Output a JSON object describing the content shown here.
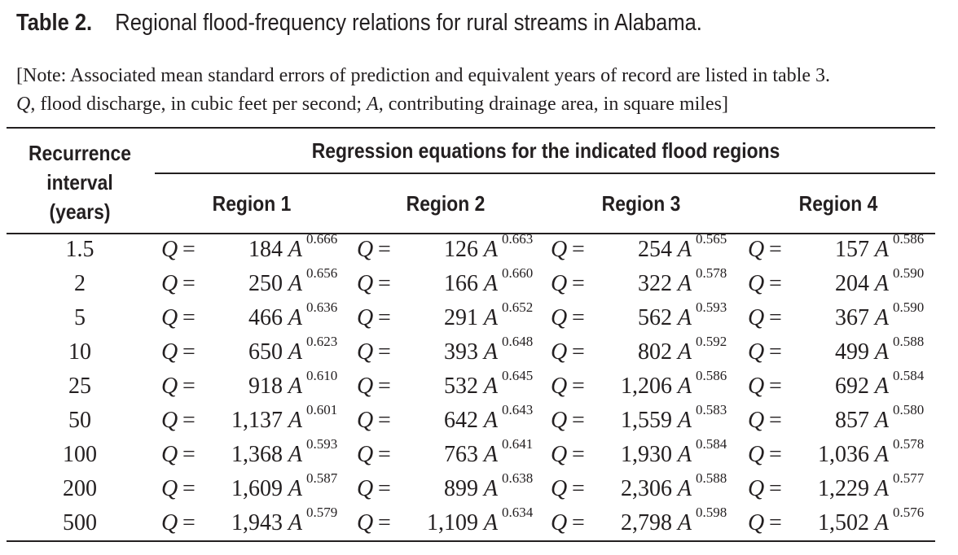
{
  "title": {
    "label": "Table 2.",
    "text": "Regional flood-frequency relations for rural streams in Alabama."
  },
  "note": {
    "line1": "[Note: Associated mean standard errors of prediction and equivalent years of record are listed in table 3.",
    "line2_q": "Q",
    "line2_mid": ", flood discharge, in cubic feet per second; ",
    "line2_a": "A",
    "line2_end": ", contributing drainage area, in square miles]"
  },
  "header": {
    "recurrence_line1": "Recurrence",
    "recurrence_line2": "interval",
    "recurrence_line3": "(years)",
    "regression": "Regression equations for the indicated flood regions",
    "regions": [
      "Region 1",
      "Region 2",
      "Region 3",
      "Region 4"
    ]
  },
  "symbols": {
    "q": "Q",
    "equals": "=",
    "a": "A"
  },
  "rows": [
    {
      "interval": "1.5",
      "eq": [
        [
          "184",
          "0.666"
        ],
        [
          "126",
          "0.663"
        ],
        [
          "254",
          "0.565"
        ],
        [
          "157",
          "0.586"
        ]
      ]
    },
    {
      "interval": "2",
      "eq": [
        [
          "250",
          "0.656"
        ],
        [
          "166",
          "0.660"
        ],
        [
          "322",
          "0.578"
        ],
        [
          "204",
          "0.590"
        ]
      ]
    },
    {
      "interval": "5",
      "eq": [
        [
          "466",
          "0.636"
        ],
        [
          "291",
          "0.652"
        ],
        [
          "562",
          "0.593"
        ],
        [
          "367",
          "0.590"
        ]
      ]
    },
    {
      "interval": "10",
      "eq": [
        [
          "650",
          "0.623"
        ],
        [
          "393",
          "0.648"
        ],
        [
          "802",
          "0.592"
        ],
        [
          "499",
          "0.588"
        ]
      ]
    },
    {
      "interval": "25",
      "eq": [
        [
          "918",
          "0.610"
        ],
        [
          "532",
          "0.645"
        ],
        [
          "1,206",
          "0.586"
        ],
        [
          "692",
          "0.584"
        ]
      ]
    },
    {
      "interval": "50",
      "eq": [
        [
          "1,137",
          "0.601"
        ],
        [
          "642",
          "0.643"
        ],
        [
          "1,559",
          "0.583"
        ],
        [
          "857",
          "0.580"
        ]
      ]
    },
    {
      "interval": "100",
      "eq": [
        [
          "1,368",
          "0.593"
        ],
        [
          "763",
          "0.641"
        ],
        [
          "1,930",
          "0.584"
        ],
        [
          "1,036",
          "0.578"
        ]
      ]
    },
    {
      "interval": "200",
      "eq": [
        [
          "1,609",
          "0.587"
        ],
        [
          "899",
          "0.638"
        ],
        [
          "2,306",
          "0.588"
        ],
        [
          "1,229",
          "0.577"
        ]
      ]
    },
    {
      "interval": "500",
      "eq": [
        [
          "1,943",
          "0.579"
        ],
        [
          "1,109",
          "0.634"
        ],
        [
          "2,798",
          "0.598"
        ],
        [
          "1,502",
          "0.576"
        ]
      ]
    }
  ]
}
